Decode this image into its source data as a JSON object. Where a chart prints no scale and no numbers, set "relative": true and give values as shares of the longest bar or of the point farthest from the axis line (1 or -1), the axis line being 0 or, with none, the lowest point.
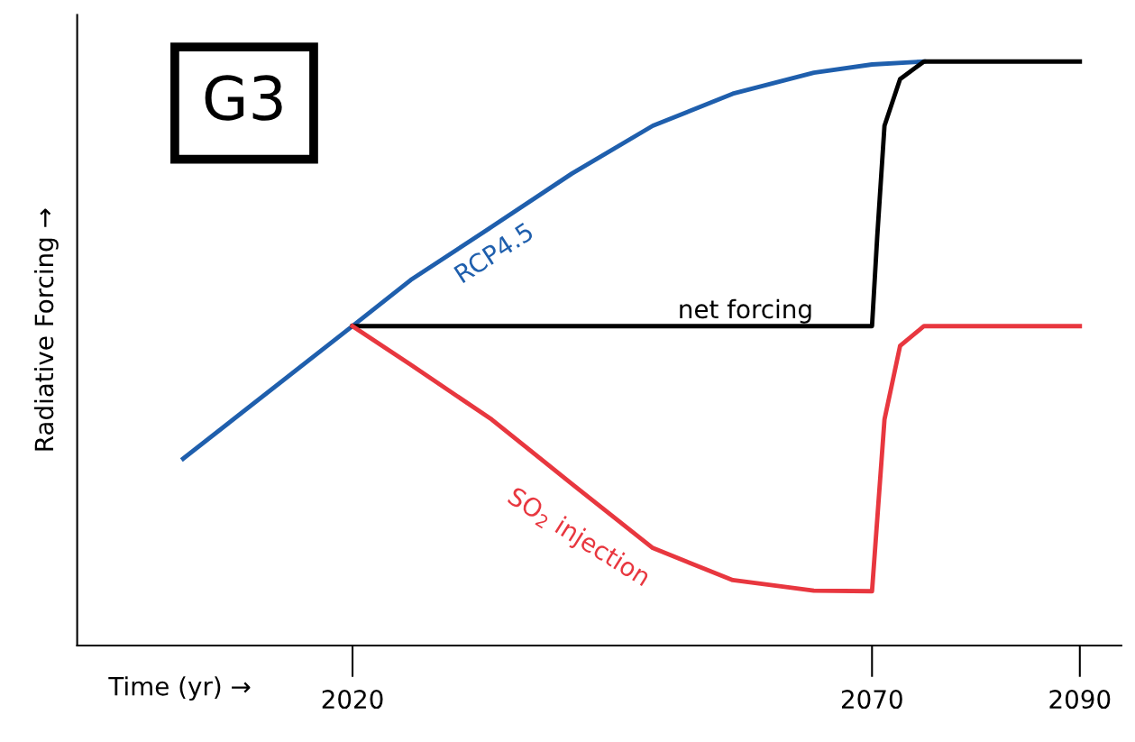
{
  "chart_data": {
    "type": "line",
    "relative": true,
    "xlabel": "Time (yr) →",
    "ylabel": "Radiative Forcing →",
    "xlim": [
      1993.5,
      2094
    ],
    "xticks": [
      2020,
      2070,
      2090
    ],
    "tick_labels": "x",
    "grid": false,
    "annotations": [
      "G3"
    ],
    "series": [
      {
        "name": "RCP4.5",
        "color": "#1f5fad",
        "x": [
          2003.7,
          2020,
          2025.6,
          2033.4,
          2041.1,
          2048.9,
          2056.6,
          2064.4,
          2070,
          2075
        ],
        "values": [
          0.32,
          0.547,
          0.626,
          0.717,
          0.808,
          0.89,
          0.945,
          0.981,
          0.995,
          1.0
        ]
      },
      {
        "name": "net forcing",
        "color": "#000000",
        "x": [
          2020,
          2070,
          2070.5,
          2071.2,
          2072.7,
          2075,
          2090
        ],
        "values": [
          0.547,
          0.547,
          0.7,
          0.89,
          0.97,
          1.0,
          1.0
        ]
      },
      {
        "name": "SO$_{2}$ injection",
        "color": "#e8373f",
        "x": [
          2020,
          2025.6,
          2033.4,
          2041.1,
          2048.9,
          2056.6,
          2064.4,
          2070,
          2071.2,
          2072.7,
          2075,
          2090
        ],
        "values": [
          0.547,
          0.481,
          0.387,
          0.277,
          0.167,
          0.112,
          0.094,
          0.093,
          0.387,
          0.513,
          0.547,
          0.547
        ]
      }
    ]
  }
}
